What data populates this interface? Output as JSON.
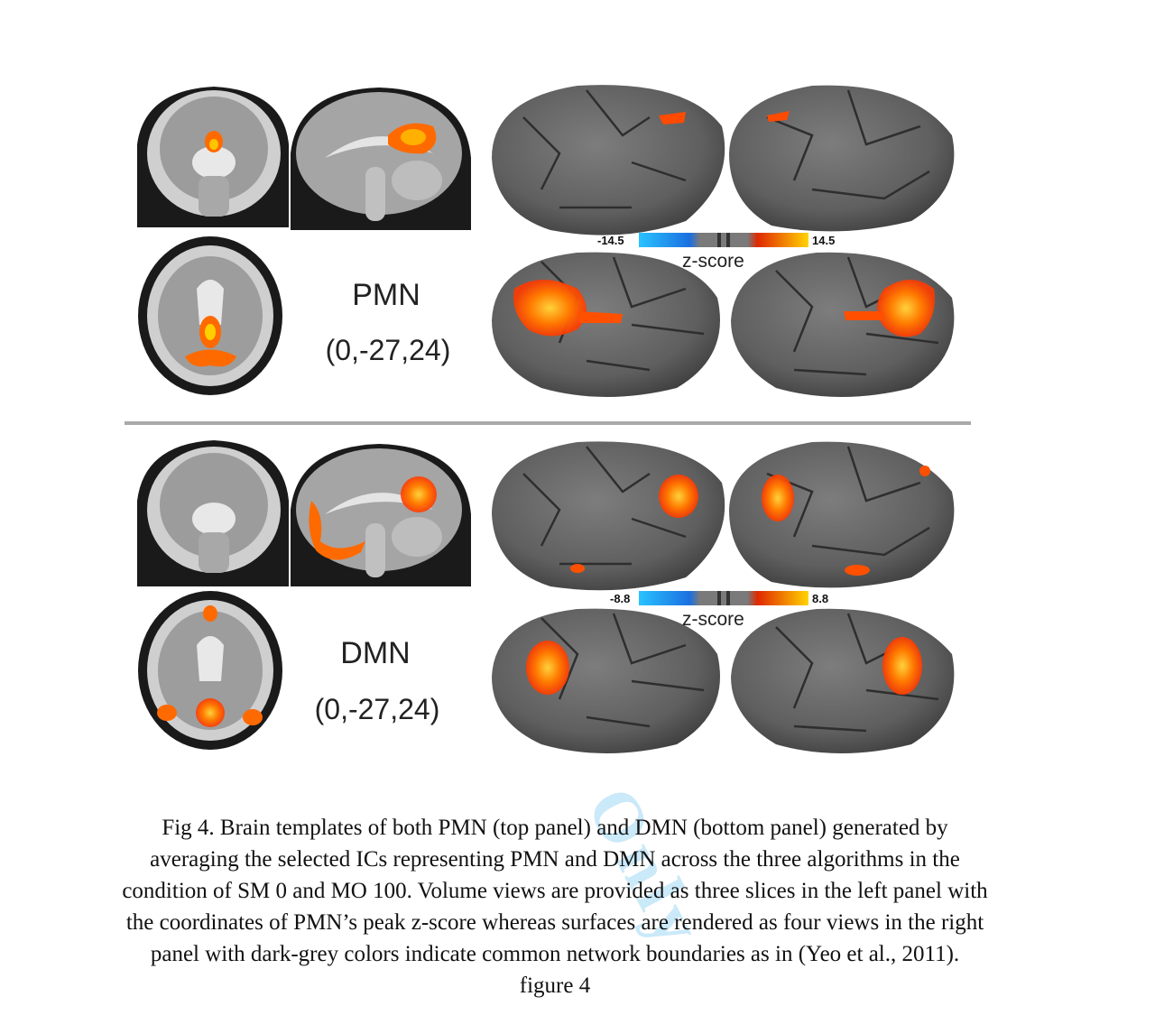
{
  "panels": [
    {
      "network": "PMN",
      "coordinates": "(0,-27,24)",
      "colorbar": {
        "min": "-14.5",
        "max": "14.5",
        "title": "z-score"
      }
    },
    {
      "network": "DMN",
      "coordinates": "(0,-27,24)",
      "colorbar": {
        "min": "-8.8",
        "max": "8.8",
        "title": "z-score"
      }
    }
  ],
  "caption": {
    "lines": [
      "Fig 4. Brain templates of both PMN (top panel) and DMN (bottom panel) generated by",
      "averaging the selected ICs representing PMN and DMN across the three algorithms in the",
      "condition of SM 0 and MO 100. Volume views are provided as three slices in the left panel with",
      "the coordinates of PMN’s peak z-score whereas surfaces are rendered as four views in the right",
      "panel with dark-grey colors indicate common network boundaries as in (Yeo et al., 2011).",
      "figure 4"
    ]
  },
  "watermark": "Only",
  "colors": {
    "activation": "#ff5a00",
    "activation_hot": "#ffd200",
    "surface": "#6e6e6e",
    "boundary": "#2e2e2e",
    "negative": "#1aa3ff"
  }
}
